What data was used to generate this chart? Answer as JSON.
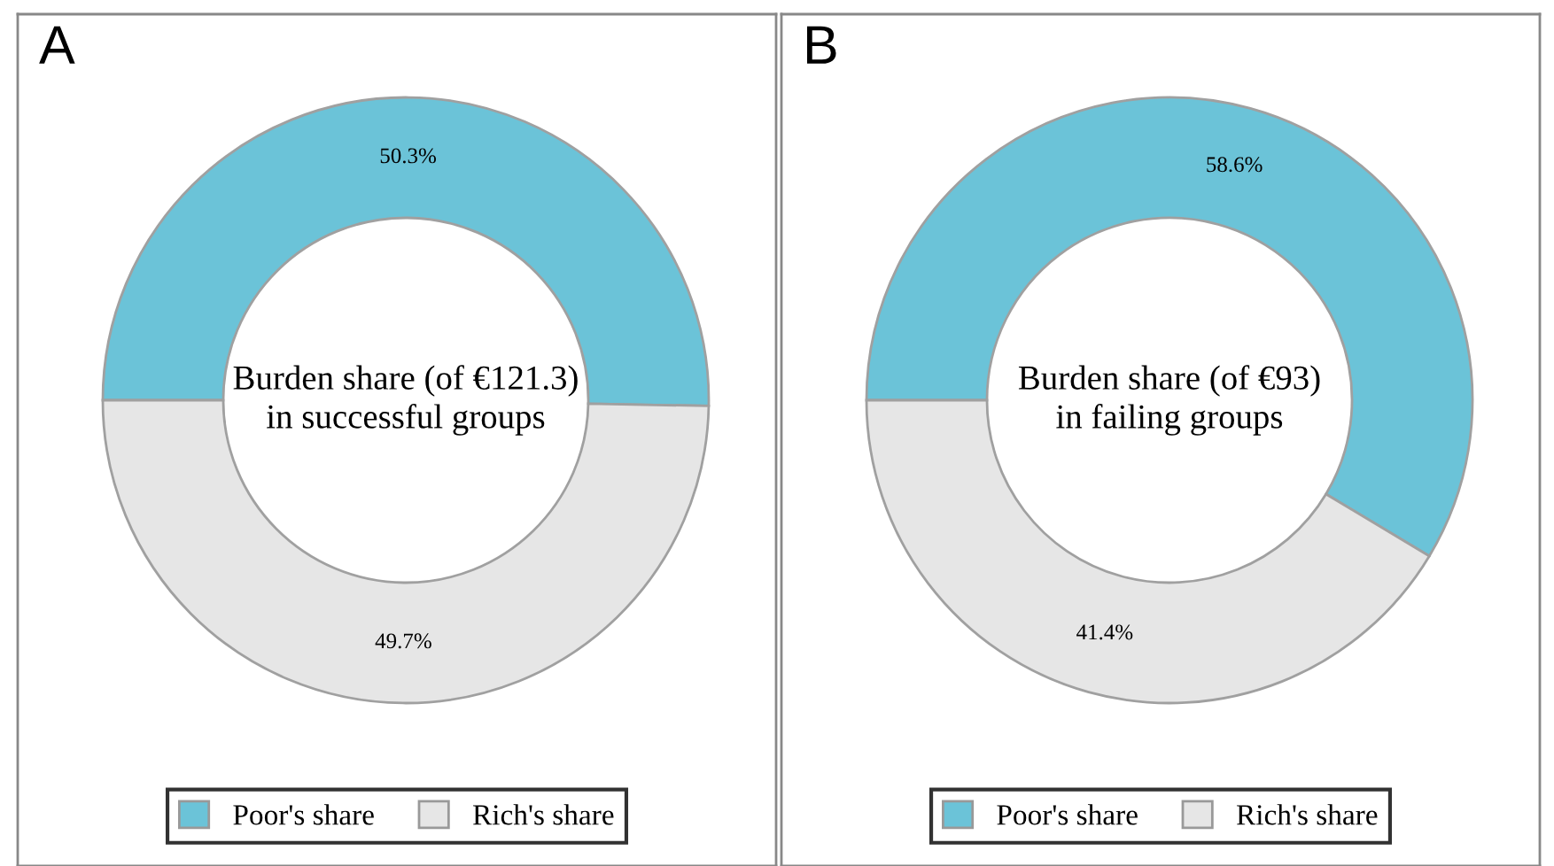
{
  "chart_data": [
    {
      "type": "donut",
      "title": "A",
      "annotations": [
        "Burden share (of €121.3)\nin successful groups"
      ],
      "categories": [
        "Poor's share",
        "Rich's share"
      ],
      "values": [
        50.3,
        49.7
      ],
      "value_labels": [
        "50.3%",
        "49.7%"
      ],
      "colors": [
        "#6bc3d8",
        "#e6e6e6"
      ],
      "legend": "bottom"
    },
    {
      "type": "donut",
      "title": "B",
      "annotations": [
        "Burden share (of €93)\nin failing groups"
      ],
      "categories": [
        "Poor's share",
        "Rich's share"
      ],
      "values": [
        58.6,
        41.4
      ],
      "value_labels": [
        "58.6%",
        "41.4%"
      ],
      "colors": [
        "#6bc3d8",
        "#e6e6e6"
      ],
      "legend": "bottom"
    }
  ]
}
